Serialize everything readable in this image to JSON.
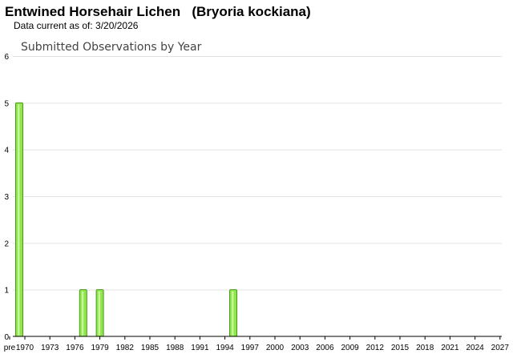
{
  "header": {
    "title": "Entwined Horsehair Lichen   (Bryoria kockiana)",
    "data_current": "Data current as of: 3/20/2026"
  },
  "colors": {
    "bar_fill": "#8ee64a",
    "bar_highlight": "#c8f59a",
    "bar_stroke": "#4a9a1a",
    "gridline": "#e3e3e3",
    "axis": "#000000"
  },
  "chart_data": {
    "type": "bar",
    "title": "Submitted Observations by Year",
    "xlabel": "",
    "ylabel": "",
    "grid": true,
    "ylim": [
      0,
      6
    ],
    "y_ticks": [
      0,
      1,
      2,
      3,
      4,
      5,
      6
    ],
    "x_tick_labels": [
      "pre",
      "1970",
      "1973",
      "1976",
      "1979",
      "1982",
      "1985",
      "1988",
      "1991",
      "1994",
      "1997",
      "2000",
      "2003",
      "2006",
      "2009",
      "2012",
      "2015",
      "2018",
      "2021",
      "2024",
      "2027"
    ],
    "categories": [
      "pre 1970",
      "1977",
      "1979",
      "1995"
    ],
    "values": [
      5,
      1,
      1,
      1
    ]
  }
}
